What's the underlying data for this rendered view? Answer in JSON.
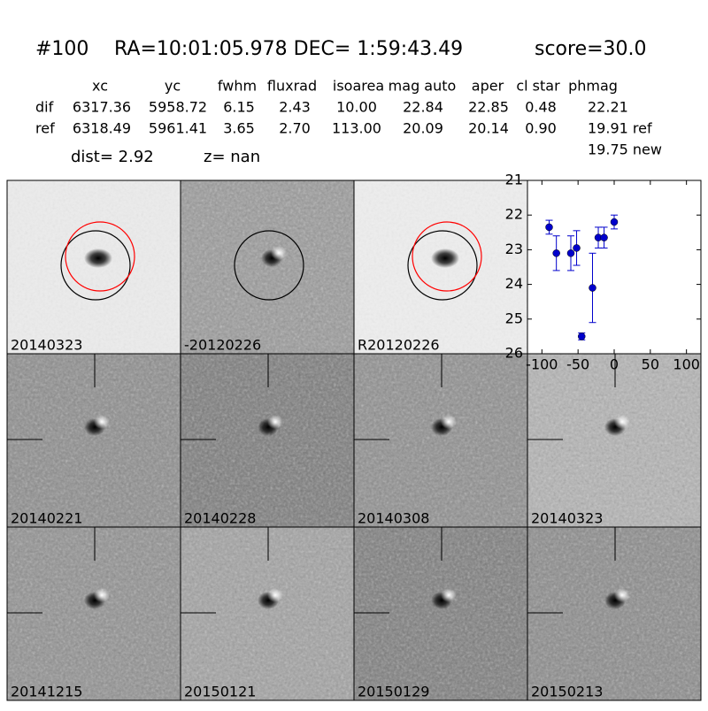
{
  "header": {
    "id": "#100",
    "coords": "RA=10:01:05.978 DEC= 1:59:43.49",
    "score": "score=30.0"
  },
  "table": {
    "columns": [
      "xc",
      "yc",
      "fwhm",
      "fluxrad",
      "isoarea",
      "mag auto",
      "aper",
      "cl star",
      "phmag"
    ],
    "rows": [
      [
        "dif",
        "6317.36",
        "5958.72",
        "6.15",
        "2.43",
        "10.00",
        "22.84",
        "22.85",
        "0.48",
        "22.21"
      ],
      [
        "ref",
        "6318.49",
        "5961.41",
        "3.65",
        "2.70",
        "113.00",
        "20.09",
        "20.14",
        "0.90",
        "19.91 ref"
      ]
    ],
    "extra": "19.75 new"
  },
  "info": {
    "dist": "dist=  2.92",
    "z": "z=   nan"
  },
  "panels": [
    {
      "label": "20140323"
    },
    {
      "label": "-20120226"
    },
    {
      "label": "R20120226"
    },
    {
      "label": "20140221"
    },
    {
      "label": "20140228"
    },
    {
      "label": "20140308"
    },
    {
      "label": "20140323",
      "color": "#ff0000"
    },
    {
      "label": "20141215"
    },
    {
      "label": "20150121"
    },
    {
      "label": "20150129"
    },
    {
      "label": "20150213"
    }
  ],
  "chart_data": {
    "type": "errorbar",
    "color": "#0000cc",
    "x": [
      -90,
      -80,
      -60,
      -52,
      -45,
      -30,
      -22,
      -14,
      0
    ],
    "values": [
      22.35,
      23.1,
      23.1,
      22.95,
      25.5,
      24.1,
      22.65,
      22.65,
      22.2
    ],
    "errors": [
      0.2,
      0.5,
      0.5,
      0.5,
      0.1,
      1.0,
      0.3,
      0.3,
      0.2
    ],
    "xlim": [
      -120,
      120
    ],
    "xticks": [
      -100,
      -50,
      0,
      50,
      100
    ],
    "ylim": [
      26,
      21
    ],
    "yticks": [
      21,
      22,
      23,
      24,
      25,
      26
    ]
  }
}
